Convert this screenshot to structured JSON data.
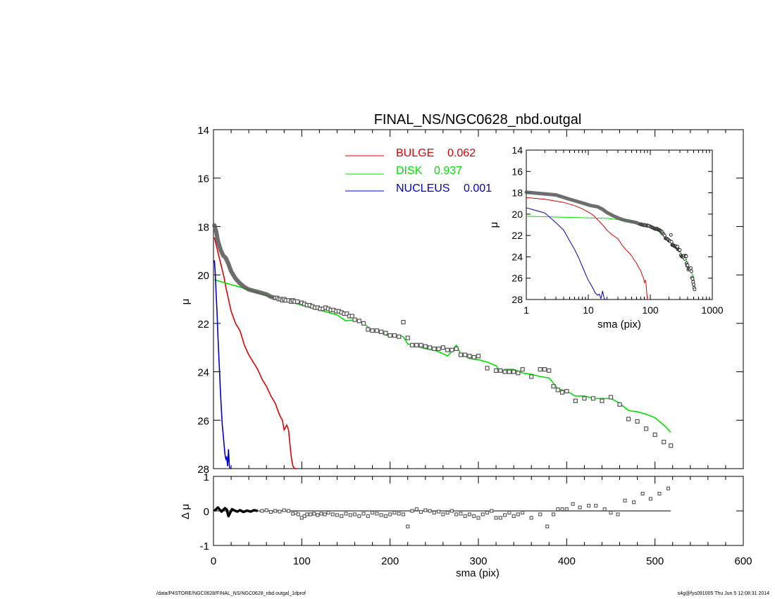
{
  "title": "FINAL_NS/NGC0628_nbd.outgal",
  "footer": {
    "path": "/data/P4STORE/NGC0628/FINAL_NS/NGC0628_nbd.outgal_1dprof",
    "stamp": "s4g@fys091005  Thu Jun  5 12:08:31 2014"
  },
  "colors": {
    "bulge": "#e00000",
    "disk": "#00e000",
    "nucleus": "#0000cc",
    "data": "#555555",
    "axis": "#000000"
  },
  "chart_data": [
    {
      "id": "main",
      "type": "line",
      "title": "FINAL_NS/NGC0628_nbd.outgal",
      "xlabel": "",
      "ylabel": "μ",
      "xlim": [
        0,
        600
      ],
      "ylim": [
        28,
        14
      ],
      "yticks": [
        14,
        16,
        18,
        20,
        22,
        24,
        26,
        28
      ],
      "xticks": [
        0,
        100,
        200,
        300,
        400,
        500,
        600
      ],
      "legend": [
        {
          "name": "BULGE",
          "value": "0.062",
          "color": "#e00000"
        },
        {
          "name": "DISK",
          "value": "0.937",
          "color": "#00e000"
        },
        {
          "name": "NUCLEUS",
          "value": "0.001",
          "color": "#0000cc"
        }
      ],
      "series": [
        {
          "name": "BULGE",
          "color": "#e00000",
          "x": [
            1,
            2,
            4,
            6,
            8,
            10,
            12,
            14,
            17,
            20,
            25,
            30,
            35,
            40,
            45,
            50,
            55,
            60,
            65,
            70,
            75,
            78,
            80,
            83,
            85,
            88,
            90,
            92,
            95
          ],
          "y": [
            18.45,
            18.6,
            18.9,
            19.2,
            19.5,
            19.8,
            20.1,
            20.5,
            21.0,
            21.5,
            22.0,
            22.3,
            22.9,
            23.3,
            23.6,
            23.9,
            24.3,
            24.6,
            25.0,
            25.3,
            25.8,
            26.0,
            26.4,
            26.2,
            26.4,
            27.5,
            27.9,
            28.0,
            28.2
          ]
        },
        {
          "name": "DISK",
          "color": "#00e000",
          "x": [
            1,
            20,
            40,
            60,
            80,
            100,
            120,
            140,
            150,
            160,
            170,
            180,
            190,
            200,
            210,
            215,
            220,
            225,
            230,
            240,
            250,
            260,
            265,
            270,
            275,
            280,
            290,
            300,
            310,
            320,
            325,
            330,
            340,
            350,
            360,
            370,
            380,
            390,
            400,
            410,
            420,
            430,
            440,
            450,
            460,
            470,
            480,
            490,
            500,
            510,
            518
          ],
          "y": [
            20.2,
            20.4,
            20.6,
            20.85,
            21.05,
            21.25,
            21.45,
            21.65,
            21.9,
            21.85,
            22.0,
            22.3,
            22.4,
            22.55,
            22.5,
            22.55,
            22.85,
            22.9,
            22.95,
            23.05,
            23.1,
            23.25,
            23.35,
            23.15,
            22.9,
            23.25,
            23.45,
            23.5,
            23.6,
            23.75,
            24.0,
            23.9,
            23.9,
            24.05,
            24.1,
            24.2,
            24.25,
            24.7,
            24.8,
            25.0,
            25.0,
            25.1,
            25.1,
            25.1,
            25.3,
            25.6,
            25.65,
            25.75,
            25.9,
            26.2,
            26.5
          ]
        },
        {
          "name": "NUCLEUS",
          "color": "#0000cc",
          "x": [
            1,
            2,
            3,
            4,
            5,
            6,
            7,
            8,
            9,
            10,
            11,
            12,
            13,
            14,
            15,
            16,
            17,
            18,
            19
          ],
          "y": [
            19.4,
            19.9,
            20.8,
            21.5,
            22.5,
            23.3,
            24.1,
            24.9,
            25.6,
            26.2,
            26.6,
            27.0,
            27.4,
            27.6,
            27.5,
            27.9,
            27.2,
            27.9,
            28.1
          ]
        }
      ],
      "data_points": {
        "label": "data",
        "x": [
          70,
          72,
          74,
          76,
          78,
          80,
          82,
          85,
          88,
          90,
          92,
          95,
          100,
          103,
          106,
          109,
          112,
          115,
          118,
          121,
          124,
          127,
          130,
          133,
          136,
          139,
          142,
          145,
          148,
          151,
          154,
          157,
          160,
          165,
          170,
          175,
          180,
          185,
          190,
          195,
          200,
          205,
          210,
          215,
          220,
          225,
          230,
          235,
          240,
          245,
          250,
          255,
          260,
          265,
          270,
          275,
          280,
          285,
          290,
          295,
          300,
          310,
          320,
          325,
          330,
          335,
          340,
          345,
          350,
          360,
          370,
          375,
          380,
          385,
          390,
          395,
          400,
          410,
          420,
          430,
          440,
          450,
          460,
          470,
          480,
          490,
          500,
          510,
          518
        ],
        "y": [
          20.95,
          20.95,
          21.0,
          21.0,
          21.05,
          21.0,
          21.05,
          21.05,
          21.1,
          21.05,
          21.1,
          21.1,
          21.15,
          21.2,
          21.25,
          21.25,
          21.3,
          21.35,
          21.35,
          21.4,
          21.4,
          21.35,
          21.4,
          21.45,
          21.45,
          21.5,
          21.5,
          21.55,
          21.6,
          21.6,
          21.7,
          21.7,
          21.85,
          21.9,
          22.0,
          22.25,
          22.3,
          22.3,
          22.35,
          22.4,
          22.5,
          22.5,
          22.55,
          21.95,
          22.6,
          22.9,
          22.9,
          22.9,
          22.95,
          23.0,
          23.05,
          23.05,
          23.0,
          23.1,
          23.1,
          23.05,
          23.3,
          23.3,
          23.35,
          23.4,
          23.35,
          23.85,
          23.95,
          23.95,
          24.0,
          24.0,
          24.0,
          24.05,
          23.9,
          24.2,
          23.9,
          23.9,
          23.95,
          24.6,
          24.75,
          24.85,
          24.8,
          25.2,
          25.1,
          25.1,
          25.2,
          25.05,
          25.35,
          25.95,
          26.05,
          26.35,
          26.6,
          26.9,
          27.05
        ]
      },
      "thick_profile": {
        "x": [
          1,
          3,
          5,
          8,
          11,
          14,
          17,
          20,
          25,
          30,
          35,
          40,
          45,
          50,
          55,
          60,
          65,
          70
        ],
        "y": [
          17.95,
          18.2,
          18.6,
          18.95,
          19.2,
          19.3,
          19.55,
          19.85,
          20.15,
          20.35,
          20.5,
          20.6,
          20.65,
          20.7,
          20.75,
          20.8,
          20.9,
          20.95
        ]
      }
    },
    {
      "id": "residual",
      "type": "scatter",
      "xlabel": "sma (pix)",
      "ylabel": "Δ μ",
      "xlim": [
        0,
        600
      ],
      "ylim": [
        -1,
        1
      ],
      "yticks": [
        -1,
        0,
        1
      ],
      "xticks": [
        0,
        100,
        200,
        300,
        400,
        500,
        600
      ],
      "zero_line": [
        0,
        518
      ],
      "thick_line": {
        "x": [
          1,
          3,
          5,
          7,
          9,
          11,
          13,
          15,
          17,
          19,
          21,
          24,
          27,
          30,
          34,
          38,
          42,
          46,
          50
        ],
        "y": [
          0.0,
          0.05,
          0.1,
          0.04,
          -0.02,
          0.03,
          0.08,
          0.04,
          -0.15,
          -0.05,
          0.05,
          0.01,
          -0.02,
          0.02,
          -0.03,
          0.01,
          -0.02,
          0.02,
          0.0
        ]
      },
      "points": {
        "x": [
          55,
          60,
          65,
          70,
          75,
          80,
          85,
          90,
          93,
          96,
          100,
          103,
          106,
          110,
          114,
          118,
          122,
          126,
          130,
          135,
          140,
          145,
          150,
          155,
          160,
          165,
          170,
          175,
          180,
          185,
          190,
          195,
          200,
          205,
          210,
          215,
          220,
          225,
          230,
          235,
          240,
          245,
          250,
          255,
          260,
          265,
          270,
          275,
          280,
          285,
          290,
          295,
          300,
          305,
          310,
          315,
          320,
          325,
          330,
          335,
          340,
          345,
          350,
          360,
          370,
          378,
          385,
          390,
          395,
          400,
          407,
          415,
          425,
          433,
          443,
          450,
          458,
          466,
          476,
          486,
          495,
          505,
          515
        ],
        "y": [
          0.0,
          0.02,
          -0.03,
          0.0,
          -0.02,
          0.02,
          0.0,
          -0.08,
          -0.05,
          -0.1,
          -0.2,
          -0.15,
          -0.1,
          -0.1,
          -0.08,
          -0.12,
          -0.08,
          -0.1,
          -0.05,
          -0.1,
          -0.12,
          -0.15,
          -0.08,
          -0.12,
          -0.1,
          -0.15,
          -0.08,
          -0.15,
          -0.05,
          -0.08,
          -0.12,
          -0.15,
          -0.1,
          -0.05,
          -0.08,
          -0.1,
          -0.45,
          0.0,
          0.05,
          -0.03,
          0.02,
          0.0,
          -0.05,
          -0.02,
          -0.1,
          -0.05,
          0.0,
          -0.1,
          -0.08,
          -0.15,
          -0.1,
          -0.15,
          -0.2,
          -0.1,
          -0.05,
          0.0,
          -0.2,
          -0.2,
          -0.12,
          -0.05,
          -0.15,
          -0.1,
          -0.05,
          -0.2,
          -0.1,
          -0.45,
          -0.1,
          0.05,
          0.05,
          0.05,
          0.2,
          0.1,
          0.15,
          0.15,
          0.05,
          -0.05,
          -0.1,
          0.3,
          0.25,
          0.5,
          0.35,
          0.5,
          0.65
        ]
      }
    },
    {
      "id": "inset",
      "type": "line",
      "xlabel": "sma (pix)",
      "ylabel": "μ",
      "xscale": "log",
      "xlim": [
        1,
        1000
      ],
      "ylim": [
        28,
        14
      ],
      "yticks": [
        14,
        16,
        18,
        20,
        22,
        24,
        26,
        28
      ],
      "xticks": [
        1,
        10,
        100,
        1000
      ],
      "xtick_labels": [
        "1",
        "10",
        "100",
        "1000"
      ]
    }
  ]
}
